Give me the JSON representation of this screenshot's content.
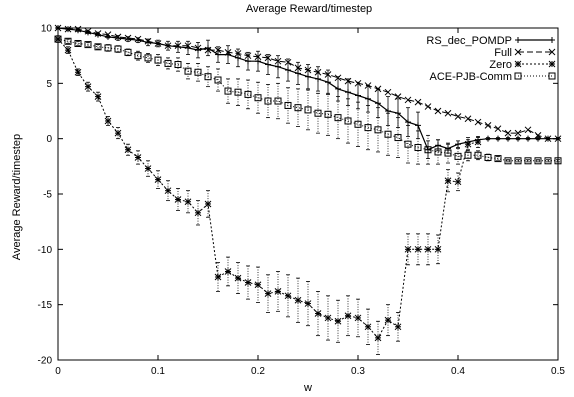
{
  "chart_data": {
    "type": "line",
    "title": "Average Reward/timestep",
    "xlabel": "w",
    "ylabel": "Average Reward/timestep",
    "xlim": [
      0,
      0.5
    ],
    "ylim": [
      -20,
      10
    ],
    "xticks": [
      "0",
      "0.1",
      "0.2",
      "0.3",
      "0.4",
      "0.5"
    ],
    "yticks": [
      "10",
      "5",
      "0",
      "-5",
      "-10",
      "-15",
      "-20"
    ],
    "grid": false,
    "legend_position": "top-right",
    "series": [
      {
        "name": "RS_dec_POMDP",
        "marker": "plus",
        "dash": "none",
        "x": [
          0,
          0.01,
          0.02,
          0.03,
          0.04,
          0.05,
          0.06,
          0.07,
          0.08,
          0.09,
          0.1,
          0.11,
          0.12,
          0.13,
          0.14,
          0.15,
          0.16,
          0.17,
          0.18,
          0.19,
          0.2,
          0.21,
          0.22,
          0.23,
          0.24,
          0.25,
          0.26,
          0.27,
          0.28,
          0.29,
          0.3,
          0.31,
          0.32,
          0.33,
          0.34,
          0.35,
          0.36,
          0.37,
          0.38,
          0.39,
          0.4,
          0.41,
          0.42,
          0.43,
          0.44,
          0.45,
          0.46,
          0.47,
          0.48,
          0.49,
          0.5
        ],
        "y": [
          10,
          9.9,
          9.8,
          9.6,
          9.4,
          9.2,
          9.1,
          9.0,
          8.9,
          8.7,
          8.6,
          8.4,
          8.3,
          8.2,
          8.0,
          8.2,
          7.6,
          7.6,
          7.3,
          7.0,
          7.0,
          6.7,
          6.5,
          6.2,
          5.9,
          5.6,
          5.4,
          5.1,
          4.5,
          4.2,
          3.9,
          3.6,
          3.2,
          2.5,
          2.3,
          1.5,
          1.2,
          -1.0,
          -0.6,
          -0.9,
          -0.5,
          -0.3,
          -0.1,
          0,
          0,
          0,
          0,
          0,
          0,
          0,
          0
        ],
        "err": [
          0.1,
          0.1,
          0.1,
          0.1,
          0.1,
          0.1,
          0.2,
          0.2,
          0.2,
          0.3,
          0.3,
          0.4,
          0.5,
          0.6,
          0.7,
          0.7,
          0.7,
          0.8,
          0.8,
          0.8,
          0.9,
          0.9,
          1.0,
          1.0,
          1.0,
          1.1,
          1.1,
          1.1,
          1.1,
          1.2,
          1.2,
          1.2,
          1.3,
          1.3,
          1.3,
          1.3,
          1.2,
          0.8,
          0.5,
          0.4,
          0.3,
          0.2,
          0.2,
          0.1,
          0.1,
          0.1,
          0.1,
          0.1,
          0.1,
          0.1,
          0.1
        ]
      },
      {
        "name": "Full",
        "marker": "x",
        "dash": "6,3",
        "x": [
          0,
          0.01,
          0.02,
          0.03,
          0.04,
          0.05,
          0.06,
          0.07,
          0.08,
          0.09,
          0.1,
          0.11,
          0.12,
          0.13,
          0.14,
          0.15,
          0.16,
          0.17,
          0.18,
          0.19,
          0.2,
          0.21,
          0.22,
          0.23,
          0.24,
          0.25,
          0.26,
          0.27,
          0.28,
          0.29,
          0.3,
          0.31,
          0.32,
          0.33,
          0.34,
          0.35,
          0.36,
          0.37,
          0.38,
          0.39,
          0.4,
          0.41,
          0.42,
          0.43,
          0.44,
          0.45,
          0.46,
          0.47,
          0.48,
          0.49,
          0.5
        ],
        "y": [
          10,
          9.9,
          9.9,
          9.7,
          9.5,
          9.4,
          9.2,
          9.1,
          9.0,
          8.8,
          8.6,
          8.4,
          8.4,
          8.4,
          8.2,
          8.0,
          8.0,
          7.8,
          7.7,
          7.5,
          7.4,
          7.3,
          7.0,
          6.9,
          6.4,
          6.2,
          6.0,
          5.8,
          5.5,
          5.2,
          5.0,
          4.8,
          4.5,
          4.2,
          3.8,
          3.5,
          3.3,
          2.9,
          2.5,
          2.3,
          2.0,
          1.8,
          1.5,
          1.2,
          0.9,
          0.5,
          0.5,
          0.8,
          0.3,
          0,
          0
        ],
        "err": []
      },
      {
        "name": "Zero",
        "marker": "star",
        "dash": "2,2",
        "x": [
          0,
          0.01,
          0.02,
          0.03,
          0.04,
          0.05,
          0.06,
          0.07,
          0.08,
          0.09,
          0.1,
          0.11,
          0.12,
          0.13,
          0.14,
          0.15,
          0.16,
          0.17,
          0.18,
          0.19,
          0.2,
          0.21,
          0.22,
          0.23,
          0.24,
          0.25,
          0.26,
          0.27,
          0.28,
          0.29,
          0.3,
          0.31,
          0.32,
          0.33,
          0.34,
          0.35,
          0.36,
          0.37,
          0.38,
          0.39,
          0.4,
          0.41,
          0.42
        ],
        "y": [
          9,
          8,
          6,
          4.7,
          3.8,
          1.6,
          0.5,
          -1.0,
          -1.7,
          -2.7,
          -3.7,
          -4.7,
          -5.5,
          -5.7,
          -6.7,
          -5.9,
          -12.5,
          -12.0,
          -12.6,
          -13.0,
          -13.2,
          -14.0,
          -13.8,
          -14.2,
          -14.6,
          -14.9,
          -15.8,
          -16.2,
          -16.5,
          -16.0,
          -16.2,
          -17.0,
          -18.0,
          -16.4,
          -17.0,
          -10.0,
          -10.0,
          -10.0,
          -10.0,
          -3.8,
          -3.9,
          -0.5,
          -0.3
        ],
        "err": [
          0.3,
          0.3,
          0.3,
          0.4,
          0.4,
          0.4,
          0.5,
          0.5,
          0.6,
          0.7,
          0.8,
          0.9,
          1.0,
          1.0,
          1.1,
          1.2,
          1.3,
          1.3,
          1.4,
          1.5,
          1.6,
          1.7,
          1.8,
          1.9,
          2.0,
          2.0,
          2.0,
          2.0,
          1.9,
          1.8,
          1.7,
          1.6,
          1.5,
          1.4,
          1.3,
          1.4,
          1.4,
          1.4,
          1.3,
          1.0,
          0.8,
          0.6,
          0.5
        ]
      },
      {
        "name": "ACE-PJB-Comm",
        "marker": "square",
        "dash": "1,2",
        "x": [
          0,
          0.01,
          0.02,
          0.03,
          0.04,
          0.05,
          0.06,
          0.07,
          0.08,
          0.09,
          0.1,
          0.11,
          0.12,
          0.13,
          0.14,
          0.15,
          0.16,
          0.17,
          0.18,
          0.19,
          0.2,
          0.21,
          0.22,
          0.23,
          0.24,
          0.25,
          0.26,
          0.27,
          0.28,
          0.29,
          0.3,
          0.31,
          0.32,
          0.33,
          0.34,
          0.35,
          0.36,
          0.37,
          0.38,
          0.39,
          0.4,
          0.41,
          0.42,
          0.43,
          0.44,
          0.45,
          0.46,
          0.47,
          0.48,
          0.49,
          0.5
        ],
        "y": [
          9,
          8.8,
          8.6,
          8.5,
          8.3,
          8.2,
          8.1,
          7.8,
          7.5,
          7.3,
          7.1,
          6.8,
          6.7,
          6.1,
          6.0,
          5.6,
          5.3,
          4.3,
          4.2,
          4.0,
          3.7,
          3.4,
          3.4,
          3.0,
          2.8,
          2.6,
          2.3,
          2.2,
          1.9,
          1.6,
          1.3,
          1.0,
          0.8,
          0.4,
          0.1,
          -0.5,
          -0.8,
          -1.0,
          -1.2,
          -1.3,
          -1.6,
          -1.5,
          -1.5,
          -1.7,
          -1.8,
          -2.0,
          -2.0,
          -2.0,
          -2.0,
          -2.0,
          -2.0
        ],
        "err": [
          0.1,
          0.2,
          0.2,
          0.2,
          0.2,
          0.3,
          0.3,
          0.3,
          0.4,
          0.4,
          0.5,
          0.5,
          0.6,
          0.7,
          0.8,
          0.9,
          1.0,
          1.1,
          1.2,
          1.3,
          1.4,
          1.5,
          1.6,
          1.6,
          1.7,
          1.8,
          1.8,
          1.9,
          1.9,
          2.0,
          2.0,
          2.0,
          2.0,
          1.9,
          1.8,
          1.7,
          1.5,
          1.3,
          1.1,
          0.9,
          0.7,
          0.5,
          0.4,
          0.3,
          0.2,
          0.1,
          0.1,
          0.1,
          0.1,
          0.1,
          0.1
        ]
      }
    ]
  }
}
